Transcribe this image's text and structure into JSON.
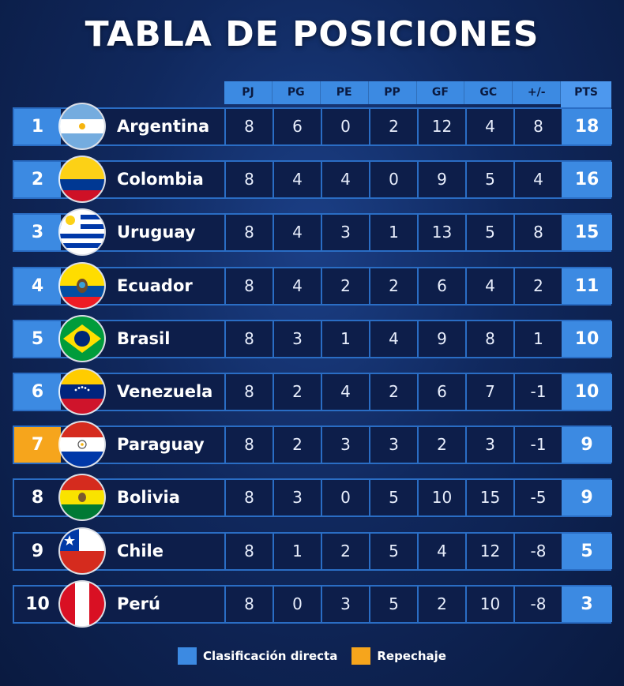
{
  "title": "TABLA DE POSICIONES",
  "columns": [
    "PJ",
    "PG",
    "PE",
    "PP",
    "GF",
    "GC",
    "+/-",
    "PTS"
  ],
  "colors": {
    "direct": "#3c8ae2",
    "playoff": "#f6a51c",
    "background": "#10285d"
  },
  "rows": [
    {
      "rank": "1",
      "team": "Argentina",
      "flag": "argentina-flag-icon",
      "zone": "direct",
      "stats": [
        "8",
        "6",
        "0",
        "2",
        "12",
        "4",
        "8"
      ],
      "pts": "18"
    },
    {
      "rank": "2",
      "team": "Colombia",
      "flag": "colombia-flag-icon",
      "zone": "direct",
      "stats": [
        "8",
        "4",
        "4",
        "0",
        "9",
        "5",
        "4"
      ],
      "pts": "16"
    },
    {
      "rank": "3",
      "team": "Uruguay",
      "flag": "uruguay-flag-icon",
      "zone": "direct",
      "stats": [
        "8",
        "4",
        "3",
        "1",
        "13",
        "5",
        "8"
      ],
      "pts": "15"
    },
    {
      "rank": "4",
      "team": "Ecuador",
      "flag": "ecuador-flag-icon",
      "zone": "direct",
      "stats": [
        "8",
        "4",
        "2",
        "2",
        "6",
        "4",
        "2"
      ],
      "pts": "11"
    },
    {
      "rank": "5",
      "team": "Brasil",
      "flag": "brasil-flag-icon",
      "zone": "direct",
      "stats": [
        "8",
        "3",
        "1",
        "4",
        "9",
        "8",
        "1"
      ],
      "pts": "10"
    },
    {
      "rank": "6",
      "team": "Venezuela",
      "flag": "venezuela-flag-icon",
      "zone": "direct",
      "stats": [
        "8",
        "2",
        "4",
        "2",
        "6",
        "7",
        "-1"
      ],
      "pts": "10"
    },
    {
      "rank": "7",
      "team": "Paraguay",
      "flag": "paraguay-flag-icon",
      "zone": "playoff",
      "stats": [
        "8",
        "2",
        "3",
        "3",
        "2",
        "3",
        "-1"
      ],
      "pts": "9"
    },
    {
      "rank": "8",
      "team": "Bolivia",
      "flag": "bolivia-flag-icon",
      "zone": "none",
      "stats": [
        "8",
        "3",
        "0",
        "5",
        "10",
        "15",
        "-5"
      ],
      "pts": "9"
    },
    {
      "rank": "9",
      "team": "Chile",
      "flag": "chile-flag-icon",
      "zone": "none",
      "stats": [
        "8",
        "1",
        "2",
        "5",
        "4",
        "12",
        "-8"
      ],
      "pts": "5"
    },
    {
      "rank": "10",
      "team": "Perú",
      "flag": "peru-flag-icon",
      "zone": "none",
      "stats": [
        "8",
        "0",
        "3",
        "5",
        "2",
        "10",
        "-8"
      ],
      "pts": "3"
    }
  ],
  "legend": {
    "direct": "Clasificación directa",
    "playoff": "Repechaje"
  }
}
